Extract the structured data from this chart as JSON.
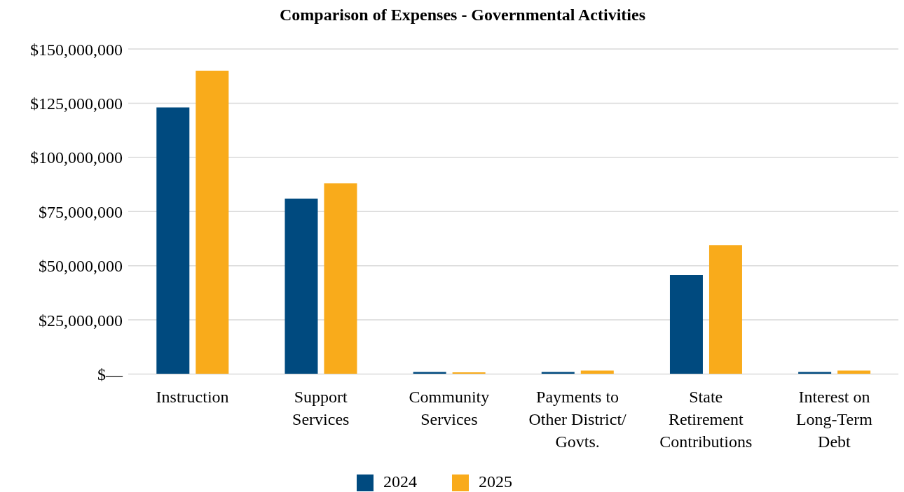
{
  "chart_data": {
    "type": "bar",
    "title": "Comparison of Expenses - Governmental Activities",
    "categories": [
      "Instruction",
      "Support Services",
      "Community Services",
      "Payments to Other District/ Govts.",
      "State Retirement Contributions",
      "Interest on Long-Term Debt"
    ],
    "series": [
      {
        "name": "2024",
        "color": "#004a7f",
        "values": [
          123000000,
          81000000,
          1000000,
          1000000,
          45700000,
          1000000
        ]
      },
      {
        "name": "2025",
        "color": "#f9ab1b",
        "values": [
          140000000,
          88000000,
          800000,
          1600000,
          59500000,
          1600000
        ]
      }
    ],
    "ylim": [
      0,
      150000000
    ],
    "yticks": [
      {
        "value": 0,
        "label": "$—"
      },
      {
        "value": 25000000,
        "label": "$25,000,000"
      },
      {
        "value": 50000000,
        "label": "$50,000,000"
      },
      {
        "value": 75000000,
        "label": "$75,000,000"
      },
      {
        "value": 100000000,
        "label": "$100,000,000"
      },
      {
        "value": 125000000,
        "label": "$125,000,000"
      },
      {
        "value": 150000000,
        "label": "$150,000,000"
      }
    ],
    "grid": "y",
    "legend": "bottom"
  }
}
